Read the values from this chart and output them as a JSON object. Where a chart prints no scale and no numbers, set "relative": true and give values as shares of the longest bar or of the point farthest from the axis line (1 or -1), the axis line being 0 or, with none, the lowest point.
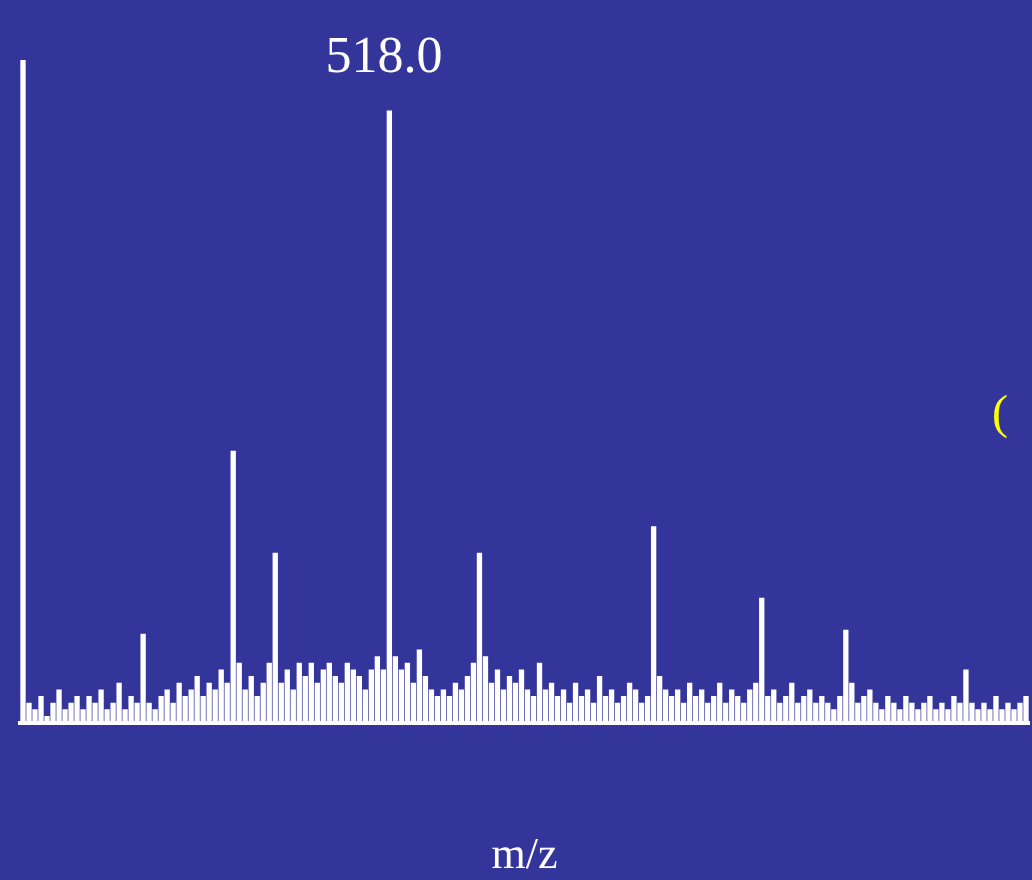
{
  "chart_data": {
    "type": "bar",
    "xlabel": "m/z",
    "relative": true,
    "grid": false,
    "legend": false,
    "color": "#ffffff",
    "annotations": [
      "518.0",
      "("
    ],
    "categories": [
      null,
      null,
      null,
      null,
      null,
      null,
      null,
      null,
      null,
      null,
      null,
      null,
      null,
      null,
      null,
      null,
      null,
      null,
      null,
      null,
      null,
      null,
      null,
      null,
      null,
      null,
      null,
      null,
      null,
      null,
      null,
      null,
      null,
      null,
      null,
      null,
      null,
      null,
      null,
      null,
      null,
      null,
      null,
      null,
      null,
      null,
      null,
      null,
      null,
      null,
      null,
      null,
      null,
      null,
      null,
      null,
      null,
      null,
      null,
      null,
      null,
      null,
      null,
      null,
      null,
      null,
      null,
      null,
      null,
      null,
      null,
      null,
      null,
      null,
      null,
      null,
      null,
      null,
      null,
      null,
      null,
      null,
      null,
      null,
      null,
      null,
      null,
      null,
      null,
      null,
      null,
      null,
      null,
      null,
      null,
      null,
      null,
      null,
      null,
      null,
      null,
      null,
      null,
      null,
      null,
      null,
      null,
      null,
      null,
      null,
      null,
      null,
      null,
      null,
      null,
      null,
      null,
      null,
      null,
      null,
      null,
      null,
      null,
      null,
      null,
      null,
      null,
      null,
      null,
      null,
      null,
      null,
      null,
      null,
      null,
      null,
      null,
      null,
      null,
      null,
      null,
      null,
      null,
      null,
      null,
      null,
      null,
      null,
      null,
      null,
      null,
      null,
      null,
      null,
      null,
      null,
      null,
      null,
      null,
      null,
      null,
      null,
      null,
      null,
      null,
      null,
      null,
      null
    ],
    "values": [
      1.0,
      0.03,
      0.02,
      0.04,
      0.01,
      0.03,
      0.05,
      0.02,
      0.03,
      0.04,
      0.02,
      0.04,
      0.03,
      0.05,
      0.02,
      0.03,
      0.06,
      0.02,
      0.04,
      0.03,
      0.134,
      0.03,
      0.02,
      0.04,
      0.05,
      0.03,
      0.06,
      0.04,
      0.05,
      0.07,
      0.04,
      0.06,
      0.05,
      0.08,
      0.06,
      0.41,
      0.09,
      0.05,
      0.07,
      0.04,
      0.06,
      0.09,
      0.256,
      0.06,
      0.08,
      0.05,
      0.09,
      0.07,
      0.09,
      0.06,
      0.08,
      0.09,
      0.07,
      0.06,
      0.09,
      0.08,
      0.07,
      0.05,
      0.08,
      0.1,
      0.08,
      0.923,
      0.1,
      0.08,
      0.09,
      0.06,
      0.11,
      0.07,
      0.05,
      0.04,
      0.05,
      0.04,
      0.06,
      0.05,
      0.07,
      0.09,
      0.256,
      0.1,
      0.06,
      0.08,
      0.05,
      0.07,
      0.06,
      0.08,
      0.05,
      0.04,
      0.09,
      0.05,
      0.06,
      0.04,
      0.05,
      0.03,
      0.06,
      0.04,
      0.05,
      0.03,
      0.07,
      0.04,
      0.05,
      0.03,
      0.04,
      0.06,
      0.05,
      0.03,
      0.04,
      0.296,
      0.07,
      0.05,
      0.04,
      0.05,
      0.03,
      0.06,
      0.04,
      0.05,
      0.03,
      0.04,
      0.06,
      0.03,
      0.05,
      0.04,
      0.03,
      0.05,
      0.06,
      0.188,
      0.04,
      0.05,
      0.03,
      0.04,
      0.06,
      0.03,
      0.04,
      0.05,
      0.03,
      0.04,
      0.03,
      0.02,
      0.04,
      0.14,
      0.06,
      0.03,
      0.04,
      0.05,
      0.03,
      0.02,
      0.04,
      0.03,
      0.02,
      0.04,
      0.03,
      0.02,
      0.03,
      0.04,
      0.02,
      0.03,
      0.02,
      0.04,
      0.03,
      0.08,
      0.03,
      0.02,
      0.03,
      0.02,
      0.04,
      0.02,
      0.03,
      0.02,
      0.03,
      0.04
    ]
  }
}
